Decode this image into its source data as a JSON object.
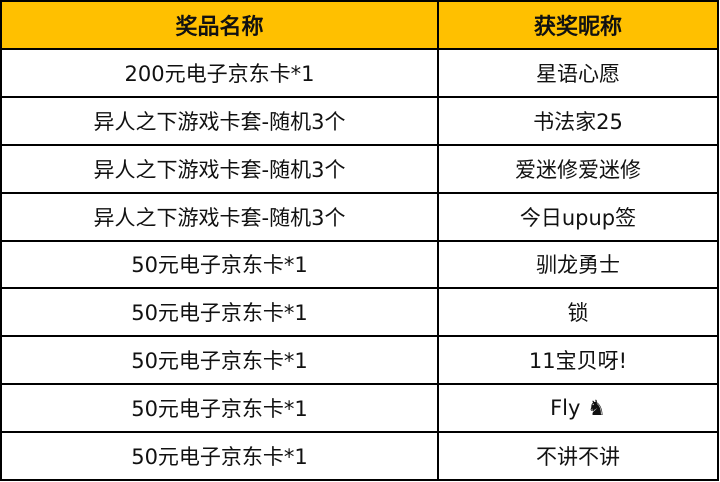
{
  "header": {
    "prize": "奖品名称",
    "winner": "获奖昵称",
    "bg_color": "#FFC000"
  },
  "rows": [
    {
      "prize": "200元电子京东卡*1",
      "winner": "星语心愿"
    },
    {
      "prize": "异人之下游戏卡套-随机3个",
      "winner": "书法家25"
    },
    {
      "prize": "异人之下游戏卡套-随机3个",
      "winner": "爱迷修爱迷修"
    },
    {
      "prize": "异人之下游戏卡套-随机3个",
      "winner": "今日upup签"
    },
    {
      "prize": "50元电子京东卡*1",
      "winner": "驯龙勇士"
    },
    {
      "prize": "50元电子京东卡*1",
      "winner": "锁"
    },
    {
      "prize": "50元电子京东卡*1",
      "winner": "11宝贝呀!"
    },
    {
      "prize": "50元电子京东卡*1",
      "winner": "Fly ♞"
    },
    {
      "prize": "50元电子京东卡*1",
      "winner": "不讲不讲"
    }
  ]
}
